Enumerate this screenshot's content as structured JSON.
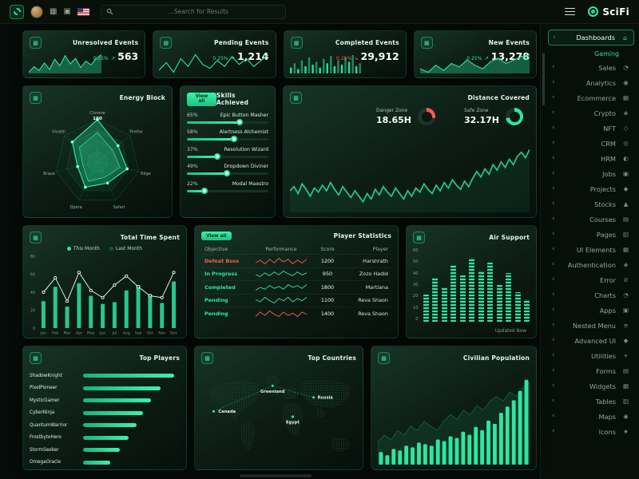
{
  "colors": {
    "accent": "#2de6a0",
    "danger": "#ff5a52",
    "line_light": "#bff7e2"
  },
  "topbar": {
    "search_placeholder": "...Search for Results",
    "logo_text": "SciFi"
  },
  "sidebar": {
    "items": [
      {
        "label": "Dashboards",
        "glyph": "⌂",
        "type": "active"
      },
      {
        "label": "Gaming",
        "glyph": "",
        "type": "sub"
      },
      {
        "label": "Sales",
        "glyph": "◔",
        "type": "item"
      },
      {
        "label": "Analytics",
        "glyph": "◉",
        "type": "item"
      },
      {
        "label": "Ecommerce",
        "glyph": "▦",
        "type": "item"
      },
      {
        "label": "Crypto",
        "glyph": "◈",
        "type": "item"
      },
      {
        "label": "NFT",
        "glyph": "◇",
        "type": "item"
      },
      {
        "label": "CRM",
        "glyph": "◎",
        "type": "item"
      },
      {
        "label": "HRM",
        "glyph": "◐",
        "type": "item"
      },
      {
        "label": "Jobs",
        "glyph": "▣",
        "type": "item"
      },
      {
        "label": "Projects",
        "glyph": "◆",
        "type": "item"
      },
      {
        "label": "Stocks",
        "glyph": "▲",
        "type": "item"
      },
      {
        "label": "Courses",
        "glyph": "▤",
        "type": "item"
      },
      {
        "label": "Pages",
        "glyph": "▥",
        "type": "item"
      },
      {
        "label": "UI Elements",
        "glyph": "▦",
        "type": "item"
      },
      {
        "label": "Authentication",
        "glyph": "◈",
        "type": "item"
      },
      {
        "label": "Error",
        "glyph": "⊘",
        "type": "item"
      },
      {
        "label": "Charts",
        "glyph": "◔",
        "type": "item"
      },
      {
        "label": "Apps",
        "glyph": "▣",
        "type": "item"
      },
      {
        "label": "Nested Menu",
        "glyph": "≡",
        "type": "item"
      },
      {
        "label": "Advanced UI",
        "glyph": "◆",
        "type": "item"
      },
      {
        "label": "Utilities",
        "glyph": "+",
        "type": "item"
      },
      {
        "label": "Forms",
        "glyph": "▤",
        "type": "item"
      },
      {
        "label": "Widgets",
        "glyph": "▦",
        "type": "item"
      },
      {
        "label": "Tables",
        "glyph": "▥",
        "type": "item"
      },
      {
        "label": "Maps",
        "glyph": "◉",
        "type": "item"
      },
      {
        "label": "Icons",
        "glyph": "★",
        "type": "item"
      }
    ]
  },
  "stats": [
    {
      "title": "Unresolved Events",
      "delta": "0.25%",
      "value": "563",
      "trend": "up",
      "chart_data": {
        "type": "area",
        "values": [
          12,
          18,
          14,
          22,
          15,
          26,
          19,
          30,
          21,
          27,
          17,
          24,
          20,
          27,
          31
        ]
      }
    },
    {
      "title": "Pending Events",
      "delta": "0.25%",
      "value": "1,214",
      "trend": "up",
      "chart_data": {
        "type": "line",
        "values": [
          10,
          14,
          9,
          16,
          12,
          18,
          13,
          11,
          15,
          12,
          17,
          13,
          16,
          12,
          15,
          18
        ]
      }
    },
    {
      "title": "Completed Events",
      "delta": "0.25%",
      "value": "29,912",
      "trend": "down",
      "chart_data": {
        "type": "bar",
        "values": [
          8,
          14,
          6,
          18,
          10,
          22,
          12,
          16,
          8,
          20,
          14,
          24,
          10,
          18,
          12,
          22,
          16,
          25,
          10,
          14
        ]
      }
    },
    {
      "title": "New Events",
      "delta": "0.25%",
      "value": "13,278",
      "trend": "up",
      "chart_data": {
        "type": "area",
        "values": [
          14,
          10,
          18,
          12,
          20,
          16,
          24,
          18,
          14,
          22,
          26,
          20,
          24,
          28,
          30
        ]
      }
    }
  ],
  "energy": {
    "title": "Energy Block",
    "peak_label": "100",
    "chart_data": {
      "type": "radar",
      "max": 100,
      "axes": [
        "Chrome",
        "Firefox",
        "Edge",
        "Safari",
        "Opera",
        "Brave",
        "Vivaldi"
      ],
      "series": [
        {
          "name": "current",
          "values": [
            100,
            62,
            72,
            55,
            66,
            48,
            76
          ]
        },
        {
          "name": "previous",
          "values": [
            70,
            45,
            55,
            40,
            50,
            35,
            55
          ]
        }
      ]
    }
  },
  "skills": {
    "title": "Skills Achieved",
    "view_all": "View all",
    "rows": [
      {
        "pct": "65%",
        "value": 65,
        "label": "Epic Button Masher"
      },
      {
        "pct": "58%",
        "value": 58,
        "label": "Alertness Alchemist"
      },
      {
        "pct": "37%",
        "value": 37,
        "label": "Resolution Wizard"
      },
      {
        "pct": "49%",
        "value": 49,
        "label": "Dropdown Diviner"
      },
      {
        "pct": "22%",
        "value": 22,
        "label": "Modal Maestro"
      }
    ]
  },
  "distance": {
    "title": "Distance Covered",
    "gauges": [
      {
        "label": "Danger Zone",
        "value": "18.65H",
        "pct": 28,
        "color": "#ff5a52"
      },
      {
        "label": "Safe Zone",
        "value": "32.17H",
        "pct": 72,
        "color": "#2de6a0"
      }
    ],
    "chart_data": {
      "type": "line",
      "values": [
        44,
        47,
        42,
        49,
        45,
        40,
        46,
        43,
        48,
        44,
        50,
        45,
        41,
        47,
        43,
        39,
        44,
        40,
        36,
        42,
        38,
        45,
        41,
        47,
        43,
        40,
        46,
        42,
        38,
        44,
        40,
        46,
        43,
        49,
        45,
        42,
        48,
        44,
        50,
        46,
        52,
        48,
        45,
        51,
        47,
        53,
        58,
        54,
        60,
        56,
        63,
        59,
        65,
        61,
        67,
        63,
        69,
        72,
        68,
        74
      ]
    }
  },
  "timespent": {
    "title": "Total Time Spent",
    "legend": [
      "This Month",
      "Last Month"
    ],
    "chart_data": {
      "type": "bar+line",
      "categories": [
        "Jan",
        "Feb",
        "Mar",
        "Apr",
        "May",
        "Jun",
        "Jul",
        "Aug",
        "Sep",
        "Oct",
        "Nov",
        "Dec"
      ],
      "yticks": [
        0,
        20,
        40,
        60,
        80
      ],
      "ymax": 80,
      "series": [
        {
          "name": "This Month",
          "type": "bar",
          "values": [
            30,
            46,
            24,
            50,
            36,
            27,
            29,
            42,
            48,
            38,
            28,
            52
          ]
        },
        {
          "name": "Last Month",
          "type": "line",
          "values": [
            40,
            56,
            30,
            62,
            42,
            34,
            48,
            58,
            46,
            36,
            34,
            62
          ]
        }
      ]
    }
  },
  "playerstats": {
    "title": "Player Statistics",
    "view_all": "View all",
    "columns": [
      "Objective",
      "Performance",
      "Score",
      "Player"
    ],
    "rows": [
      {
        "objective": "Defeat Boss",
        "status": "danger",
        "score": "1200",
        "player": "Harshrath",
        "spark": [
          5,
          8,
          4,
          9,
          5,
          10,
          6,
          9,
          4,
          8,
          5,
          9
        ],
        "spark_color": "#ff5a52"
      },
      {
        "objective": "In Progress",
        "status": "ok",
        "score": "950",
        "player": "Zozo Hadid",
        "spark": [
          6,
          4,
          8,
          5,
          9,
          6,
          10,
          7,
          5,
          9,
          6,
          8
        ],
        "spark_color": "#2de6a0"
      },
      {
        "objective": "Completed",
        "status": "ok",
        "score": "1800",
        "player": "Martiana",
        "spark": [
          4,
          7,
          5,
          9,
          6,
          8,
          5,
          10,
          7,
          9,
          6,
          10
        ],
        "spark_color": "#2de6a0"
      },
      {
        "objective": "Pending",
        "status": "ok",
        "score": "1100",
        "player": "Reva Shaon",
        "spark": [
          7,
          5,
          9,
          6,
          4,
          8,
          6,
          9,
          5,
          8,
          6,
          9
        ],
        "spark_color": "#2de6a0"
      },
      {
        "objective": "Pending",
        "status": "ok",
        "score": "1400",
        "player": "Reva Shaon",
        "spark": [
          5,
          9,
          6,
          10,
          7,
          5,
          9,
          6,
          8,
          5,
          9,
          7
        ],
        "spark_color": "#ff5a52"
      }
    ]
  },
  "airsupport": {
    "title": "Air Support",
    "updated": "Updated Now",
    "chart_data": {
      "type": "bar",
      "ymax": 60,
      "yticks": [
        60,
        50,
        40,
        30,
        20,
        10,
        0
      ],
      "values": [
        22,
        36,
        28,
        46,
        38,
        52,
        42,
        48,
        30,
        40,
        24,
        18
      ]
    }
  },
  "topplayers": {
    "title": "Top Players",
    "chart_data": {
      "type": "hbar",
      "categories": [
        "ShadowKnight",
        "PixelPioneer",
        "MysticGamer",
        "CyberNinja",
        "QuantumWarrior",
        "FrostbyteHero",
        "StormSeeker",
        "OmegaOracle"
      ],
      "values": [
        94,
        80,
        70,
        62,
        55,
        47,
        38,
        28
      ],
      "max": 100
    }
  },
  "topcountries": {
    "title": "Top Countries",
    "chart_data": {
      "type": "map",
      "markers": [
        {
          "name": "Greenland"
        },
        {
          "name": "Canada"
        },
        {
          "name": "Russia"
        },
        {
          "name": "Egypt"
        }
      ]
    }
  },
  "population": {
    "title": "Civilian Population",
    "chart_data": {
      "type": "bar+area",
      "bars": [
        8,
        6,
        10,
        9,
        12,
        11,
        14,
        13,
        12,
        16,
        15,
        18,
        17,
        21,
        19,
        24,
        22,
        28,
        26,
        33,
        37,
        41,
        47,
        54
      ],
      "area": [
        20,
        26,
        22,
        30,
        26,
        34,
        30,
        38,
        34,
        30,
        38,
        44,
        40,
        48,
        44,
        52,
        48,
        56,
        60,
        56,
        64,
        60,
        68,
        72
      ]
    }
  }
}
